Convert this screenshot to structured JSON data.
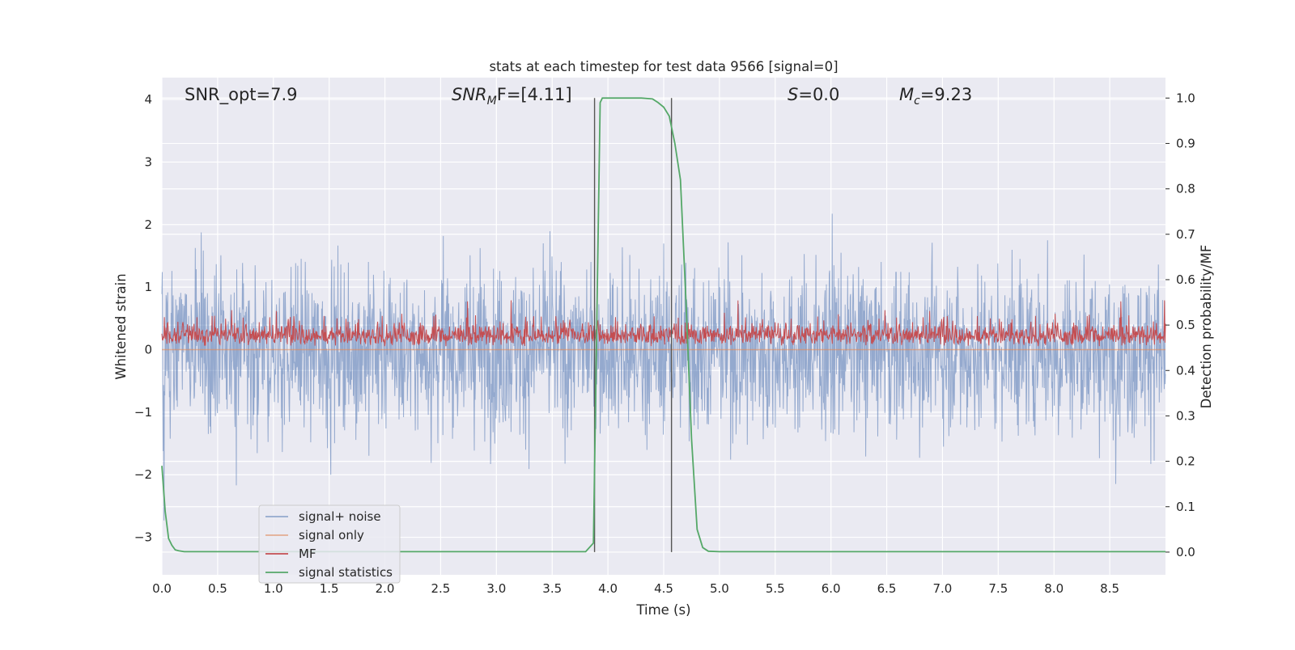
{
  "chart_data": {
    "type": "line",
    "title": "stats at each timestep for test data 9566 [signal=0]",
    "xlabel": "Time (s)",
    "ylabel": "Whitened strain",
    "ylabel_right": "Detection probability/MF",
    "xlim": [
      0,
      9.0
    ],
    "ylim": [
      -3.6,
      4.35
    ],
    "ylim_right": [
      -0.05,
      1.045
    ],
    "x_ticks": [
      "0.0",
      "0.5",
      "1.0",
      "1.5",
      "2.0",
      "2.5",
      "3.0",
      "3.5",
      "4.0",
      "4.5",
      "5.0",
      "5.5",
      "6.0",
      "6.5",
      "7.0",
      "7.5",
      "8.0",
      "8.5"
    ],
    "y_ticks": [
      "−3",
      "−2",
      "−1",
      "0",
      "1",
      "2",
      "3",
      "4"
    ],
    "y_ticks_right": [
      "0.0",
      "0.1",
      "0.2",
      "0.3",
      "0.4",
      "0.5",
      "0.6",
      "0.7",
      "0.8",
      "0.9",
      "1.0"
    ],
    "grid": true,
    "legend_position": "lower-left",
    "annotations": {
      "snr_opt": "SNR_opt=7.9",
      "snr_mf_main": "SNR",
      "snr_mf_sub": "M",
      "snr_mf_tail": "F=[4.11]",
      "s_main": "S",
      "s_tail": "=0.0",
      "mc_main": "M",
      "mc_sub": "c",
      "mc_tail": "=9.23"
    },
    "vertical_lines": [
      3.88,
      4.57
    ],
    "series": [
      {
        "name": "signal+ noise",
        "color": "#4c72b0",
        "kind": "noise",
        "noise_sigma": 0.95,
        "noise_max": 3.95,
        "noise_min": -3.25
      },
      {
        "name": "signal only",
        "color": "#dd8452",
        "kind": "constant",
        "value": 0.0
      },
      {
        "name": "MF",
        "color": "#c44e52",
        "kind": "mf",
        "mf_base": 0.05,
        "mf_peak": 1.0
      },
      {
        "name": "signal statistics",
        "color": "#55a868",
        "axis": "right",
        "x": [
          0.0,
          0.03,
          0.06,
          0.09,
          0.12,
          0.15,
          0.2,
          0.3,
          1.0,
          2.0,
          3.0,
          3.5,
          3.8,
          3.87,
          3.9,
          3.93,
          3.95,
          4.0,
          4.2,
          4.3,
          4.4,
          4.45,
          4.5,
          4.55,
          4.6,
          4.65,
          4.7,
          4.75,
          4.8,
          4.85,
          4.9,
          5.0,
          6.0,
          7.0,
          8.0,
          9.0
        ],
        "values": [
          0.19,
          0.09,
          0.03,
          0.015,
          0.005,
          0.003,
          0.001,
          0.001,
          0.001,
          0.001,
          0.001,
          0.001,
          0.001,
          0.02,
          0.5,
          0.99,
          1.0,
          1.0,
          1.0,
          1.0,
          0.998,
          0.99,
          0.98,
          0.96,
          0.9,
          0.82,
          0.55,
          0.25,
          0.05,
          0.01,
          0.002,
          0.001,
          0.001,
          0.001,
          0.001,
          0.001
        ]
      }
    ]
  }
}
